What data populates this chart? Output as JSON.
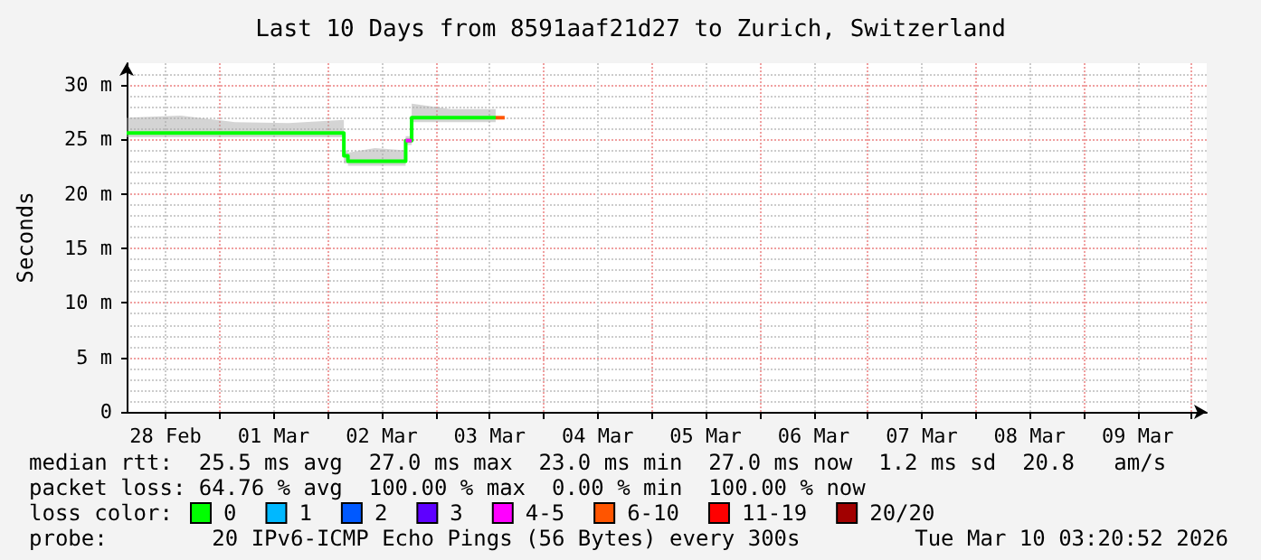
{
  "chart_data": {
    "type": "line",
    "title": "Last 10 Days from 8591aaf21d27 to Zurich, Switzerland",
    "ylabel": "Seconds",
    "legend_title": "loss color:",
    "legend": "bottom",
    "grid": true,
    "xlim": [
      "2026-02-28T03:20",
      "2026-03-10T03:20"
    ],
    "xticks": [
      {
        "value": "2026-02-28T12:00",
        "label": "28 Feb"
      },
      {
        "value": "2026-03-01T00:00",
        "label": null
      },
      {
        "value": "2026-03-01T12:00",
        "label": "01 Mar"
      },
      {
        "value": "2026-03-02T00:00",
        "label": null
      },
      {
        "value": "2026-03-02T12:00",
        "label": "02 Mar"
      },
      {
        "value": "2026-03-03T00:00",
        "label": null
      },
      {
        "value": "2026-03-03T12:00",
        "label": "03 Mar"
      },
      {
        "value": "2026-03-04T00:00",
        "label": null
      },
      {
        "value": "2026-03-04T12:00",
        "label": "04 Mar"
      },
      {
        "value": "2026-03-05T00:00",
        "label": null
      },
      {
        "value": "2026-03-05T12:00",
        "label": "05 Mar"
      },
      {
        "value": "2026-03-06T00:00",
        "label": null
      },
      {
        "value": "2026-03-06T12:00",
        "label": "06 Mar"
      },
      {
        "value": "2026-03-07T00:00",
        "label": null
      },
      {
        "value": "2026-03-07T12:00",
        "label": "07 Mar"
      },
      {
        "value": "2026-03-08T00:00",
        "label": null
      },
      {
        "value": "2026-03-08T12:00",
        "label": "08 Mar"
      },
      {
        "value": "2026-03-09T00:00",
        "label": null
      },
      {
        "value": "2026-03-09T12:00",
        "label": "09 Mar"
      },
      {
        "value": "2026-03-10T00:00",
        "label": null
      }
    ],
    "ylim": [
      0,
      32
    ],
    "yticks": [
      0,
      {
        "value": 5,
        "label": "5 m"
      },
      {
        "value": 10,
        "label": "10 m"
      },
      {
        "value": 15,
        "label": "15 m"
      },
      {
        "value": 20,
        "label": "20 m"
      },
      {
        "value": 25,
        "label": "25 m"
      },
      {
        "value": 30,
        "label": "30 m"
      }
    ],
    "series": [
      {
        "name": "0",
        "color": "#00ff00",
        "x": [
          "2026-02-28T03:20",
          "2026-02-28T15:20",
          "2026-03-01T03:20",
          "2026-03-01T15:20",
          "2026-03-02T03:36",
          "2026-03-02T03:36",
          "2026-03-02T04:30",
          "2026-03-02T04:30",
          "2026-03-02T10:30",
          "2026-03-02T17:20",
          "2026-03-02T17:20",
          "2026-03-02T18:40",
          "2026-03-02T18:40",
          "2026-03-03T03:20",
          "2026-03-03T13:20"
        ],
        "values": [
          25.6,
          25.6,
          25.6,
          25.6,
          25.6,
          23.5,
          23.5,
          23.0,
          23.0,
          23.0,
          24.9,
          24.9,
          27.0,
          27.0,
          27.0
        ],
        "lower": [
          25.2,
          25.2,
          25.2,
          25.2,
          25.2,
          22.8,
          22.8,
          22.6,
          22.6,
          22.6,
          24.5,
          24.5,
          26.6,
          26.6,
          26.6
        ],
        "upper": [
          27.0,
          27.2,
          26.6,
          26.5,
          26.8,
          24.0,
          24.0,
          23.8,
          24.2,
          24.0,
          25.3,
          25.3,
          28.3,
          27.8,
          27.8
        ]
      },
      {
        "name": "1",
        "color": "#00b8ff"
      },
      {
        "name": "2",
        "color": "#0059ff"
      },
      {
        "name": "3",
        "color": "#5e00ff"
      },
      {
        "name": "4-5",
        "color": "#ff00ff",
        "x": [
          "2026-03-02T17:20",
          "2026-03-02T18:40"
        ],
        "values": [
          24.9,
          24.9
        ]
      },
      {
        "name": "6-10",
        "color": "#ff5500",
        "x": [
          "2026-03-03T13:20",
          "2026-03-03T15:20"
        ],
        "values": [
          27.0,
          27.0
        ]
      },
      {
        "name": "11-19",
        "color": "#ff0000"
      },
      {
        "name": "20/20",
        "color": "#a10000"
      }
    ],
    "annotations": [
      "median rtt:  25.5 ms avg  27.0 ms max  23.0 ms min  27.0 ms now  1.2 ms sd  20.8   am/s",
      "packet loss: 64.76 % avg  100.00 % max  0.00 % min  100.00 % now",
      "probe:        20 IPv6-ICMP Echo Pings (56 Bytes) every 300s",
      "Tue Mar 10 03:20:52 2026"
    ]
  }
}
